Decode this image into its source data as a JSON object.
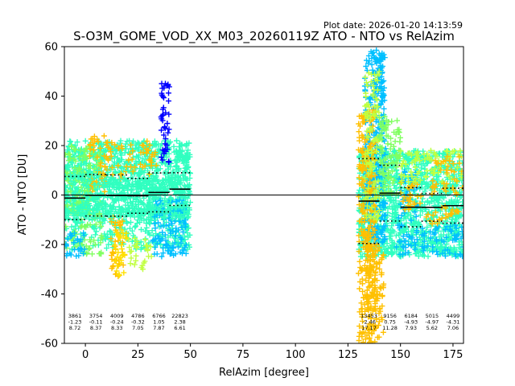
{
  "plot_date": "Plot date: 2026-01-20 14:13:59",
  "chart_data": {
    "type": "scatter",
    "title": "S-O3M_GOME_VOD_XX_M03_20260119Z ATO - NTO vs RelAzim",
    "xlabel": "RelAzim [degree]",
    "ylabel": "ATO - NTO [DU]",
    "xlim": [
      -10,
      180
    ],
    "ylim": [
      -60,
      60
    ],
    "xticks": [
      0,
      25,
      50,
      75,
      100,
      125,
      150,
      175
    ],
    "yticks": [
      -60,
      -40,
      -20,
      0,
      20,
      40,
      60
    ],
    "grid": false,
    "reference_line_y": 0,
    "bins": [
      {
        "x0": -10,
        "x1": 0,
        "count": "3861",
        "mean": "-1.23",
        "std": "8.72",
        "mean_value": -1.23,
        "std_value": 8.72
      },
      {
        "x0": 0,
        "x1": 10,
        "count": "3754",
        "mean": "-0.11",
        "std": "8.37",
        "mean_value": -0.11,
        "std_value": 8.37
      },
      {
        "x0": 10,
        "x1": 20,
        "count": "4009",
        "mean": "-0.24",
        "std": "8.33",
        "mean_value": -0.24,
        "std_value": 8.33
      },
      {
        "x0": 20,
        "x1": 30,
        "count": "4786",
        "mean": "-0.32",
        "std": "7.05",
        "mean_value": -0.32,
        "std_value": 7.05
      },
      {
        "x0": 30,
        "x1": 40,
        "count": "6766",
        "mean": "1.05",
        "std": "7.87",
        "mean_value": 1.05,
        "std_value": 7.87
      },
      {
        "x0": 40,
        "x1": 50,
        "count": "22823",
        "mean": "2.38",
        "std": "6.61",
        "mean_value": 2.38,
        "std_value": 6.61
      },
      {
        "x0": 130,
        "x1": 140,
        "count": "13453",
        "mean": "-2.46",
        "std": "17.17",
        "mean_value": -2.46,
        "std_value": 17.17
      },
      {
        "x0": 140,
        "x1": 150,
        "count": "9156",
        "mean": "0.75",
        "std": "11.28",
        "mean_value": 0.75,
        "std_value": 11.28
      },
      {
        "x0": 150,
        "x1": 160,
        "count": "6184",
        "mean": "-4.93",
        "std": "7.93",
        "mean_value": -4.93,
        "std_value": 7.93
      },
      {
        "x0": 160,
        "x1": 170,
        "count": "5015",
        "mean": "-4.97",
        "std": "5.62",
        "mean_value": -4.97,
        "std_value": 5.62
      },
      {
        "x0": 170,
        "x1": 180,
        "count": "4499",
        "mean": "-4.31",
        "std": "7.06",
        "mean_value": -4.31,
        "std_value": 7.06
      }
    ],
    "colors": {
      "marker_palette": [
        "#00c0ff",
        "#30ffc0",
        "#80ff60",
        "#c0ff40",
        "#ffe000",
        "#ffc000",
        "#0000ff"
      ],
      "mean_line": "#000000",
      "std_line": "#000000"
    },
    "clusters": [
      {
        "x": [
          -10,
          50
        ],
        "y": [
          -8,
          22
        ],
        "color": "#30ffc0",
        "density": 1.0
      },
      {
        "x": [
          -10,
          50
        ],
        "y": [
          -22,
          -5
        ],
        "color": "#30ffc0",
        "density": 0.5
      },
      {
        "x": [
          -10,
          8
        ],
        "y": [
          -24,
          20
        ],
        "color": "#80ff60",
        "density": 0.35
      },
      {
        "x": [
          2,
          10
        ],
        "y": [
          0,
          24
        ],
        "color": "#ffc000",
        "density": 0.25
      },
      {
        "x": [
          8,
          24
        ],
        "y": [
          6,
          22
        ],
        "color": "#ffc000",
        "density": 0.18
      },
      {
        "x": [
          12,
          18
        ],
        "y": [
          -33,
          -8
        ],
        "color": "#ffc000",
        "density": 0.35
      },
      {
        "x": [
          14,
          20
        ],
        "y": [
          -33,
          -14
        ],
        "color": "#ffe000",
        "density": 0.3
      },
      {
        "x": [
          -10,
          0
        ],
        "y": [
          -25,
          -15
        ],
        "color": "#00c0ff",
        "density": 0.35
      },
      {
        "x": [
          32,
          48
        ],
        "y": [
          -25,
          -2
        ],
        "color": "#00c0ff",
        "density": 0.5
      },
      {
        "x": [
          26,
          34
        ],
        "y": [
          8,
          22
        ],
        "color": "#ffc000",
        "density": 0.2
      },
      {
        "x": [
          36,
          40
        ],
        "y": [
          12,
          46
        ],
        "color": "#0000ff",
        "density": 0.45
      },
      {
        "x": [
          20,
          32
        ],
        "y": [
          -30,
          -16
        ],
        "color": "#c0ff40",
        "density": 0.2
      },
      {
        "x": [
          -10,
          50
        ],
        "y": [
          -10,
          10
        ],
        "color": "#30ffc0",
        "density": 0.4
      },
      {
        "x": [
          130,
          180
        ],
        "y": [
          -25,
          18
        ],
        "color": "#30ffc0",
        "density": 0.9
      },
      {
        "x": [
          133,
          143
        ],
        "y": [
          -20,
          58
        ],
        "color": "#00c0ff",
        "density": 0.7
      },
      {
        "x": [
          136,
          142
        ],
        "y": [
          35,
          60
        ],
        "color": "#00c0ff",
        "density": 0.4
      },
      {
        "x": [
          130,
          138
        ],
        "y": [
          -60,
          35
        ],
        "color": "#ffc000",
        "density": 0.6
      },
      {
        "x": [
          134,
          142
        ],
        "y": [
          -60,
          -20
        ],
        "color": "#ffc000",
        "density": 0.6
      },
      {
        "x": [
          133,
          140
        ],
        "y": [
          -10,
          50
        ],
        "color": "#c0ff40",
        "density": 0.4
      },
      {
        "x": [
          140,
          150
        ],
        "y": [
          0,
          32
        ],
        "color": "#80ff60",
        "density": 0.5
      },
      {
        "x": [
          148,
          158
        ],
        "y": [
          -25,
          10
        ],
        "color": "#00c0ff",
        "density": 0.3
      },
      {
        "x": [
          150,
          160
        ],
        "y": [
          -6,
          6
        ],
        "color": "#ffc000",
        "density": 0.25
      },
      {
        "x": [
          150,
          180
        ],
        "y": [
          5,
          18
        ],
        "color": "#c0ff40",
        "density": 0.3
      },
      {
        "x": [
          160,
          180
        ],
        "y": [
          -25,
          -12
        ],
        "color": "#00c0ff",
        "density": 0.3
      },
      {
        "x": [
          162,
          178
        ],
        "y": [
          -12,
          -4
        ],
        "color": "#ffc000",
        "density": 0.2
      },
      {
        "x": [
          165,
          180
        ],
        "y": [
          0,
          16
        ],
        "color": "#ffc000",
        "density": 0.2
      }
    ]
  }
}
